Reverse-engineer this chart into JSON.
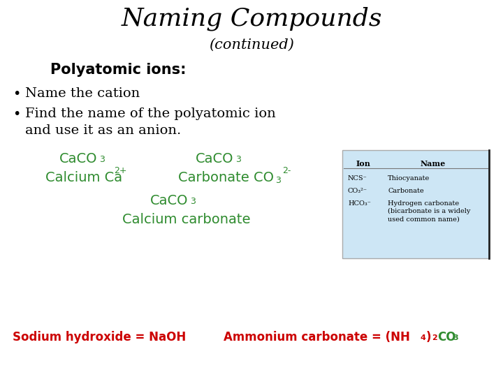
{
  "title": "Naming Compounds",
  "subtitle": "(continued)",
  "bg_color": "#ffffff",
  "title_color": "#000000",
  "section_header": "Polyatomic ions:",
  "bullet1": "  Name the cation",
  "bullet2": "  Find the name of the polyatomic ion\n  and use it as an anion.",
  "bullet_color": "#000000",
  "green_color": "#2e8b2e",
  "red_color": "#cc0000",
  "green_color2": "#3a8c3a",
  "table_bg": "#cde6f5",
  "table_border": "#aaaaaa",
  "table_header_ion": "Ion",
  "table_header_name": "Name",
  "table_ions": [
    "NCS⁻",
    "CO₃²⁻",
    "HCO₃⁻"
  ],
  "table_names": [
    "Thiocyanate",
    "Carbonate",
    "Hydrogen carbonate\n(bicarbonate is a widely\nused common name)"
  ]
}
